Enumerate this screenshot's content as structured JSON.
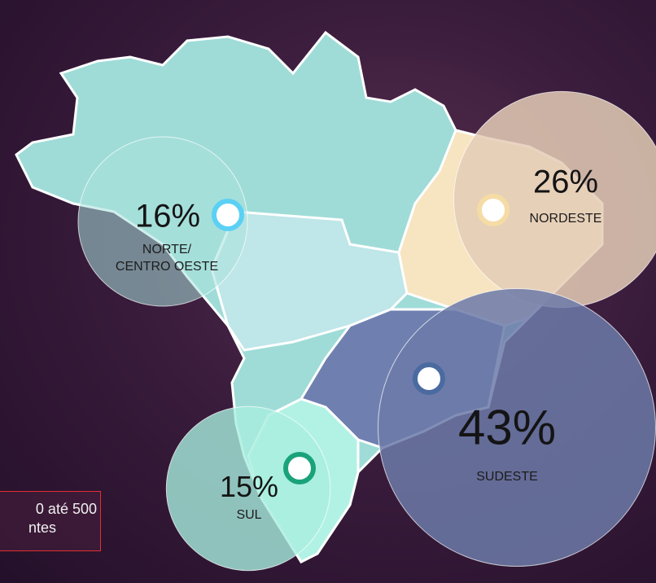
{
  "chart_data": {
    "type": "bubble_map",
    "categories": [
      "NORTE/\nCENTRO OESTE",
      "NORDESTE",
      "SUDESTE",
      "SUL"
    ],
    "values": [
      16,
      26,
      43,
      15
    ],
    "value_labels": [
      "16%",
      "26%",
      "43%",
      "15%"
    ],
    "colors": [
      "#5bd0f5",
      "#f5dca5",
      "#4a6aa0",
      "#1aa37a"
    ],
    "note": [
      "0 até 500",
      "ntes"
    ]
  }
}
